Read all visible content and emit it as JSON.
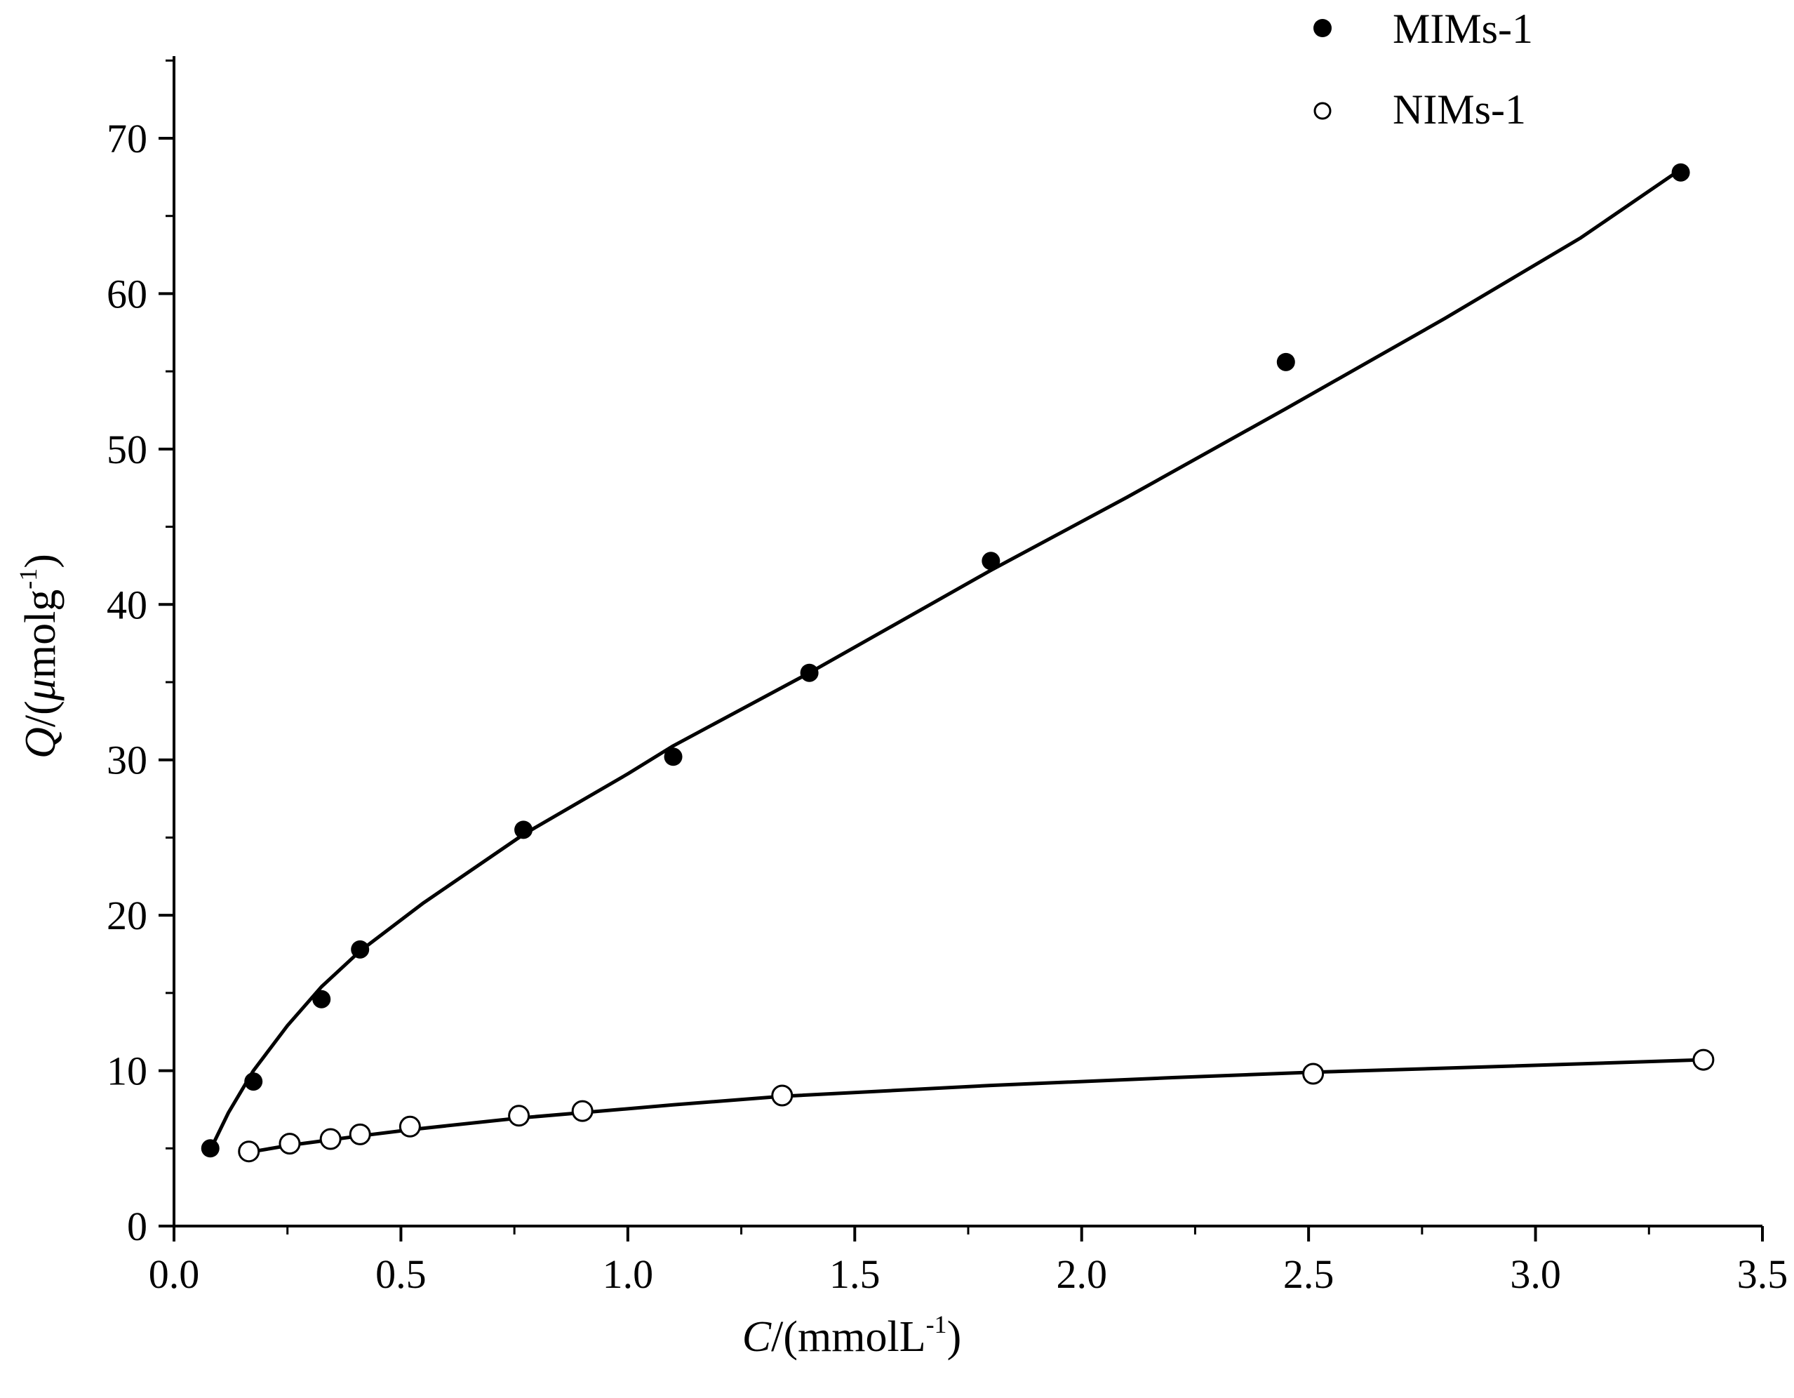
{
  "chart_data": {
    "type": "scatter",
    "title": "",
    "xlabel": {
      "var": "C",
      "unit": "/(mmolL",
      "sup": "-1",
      "close": ")"
    },
    "ylabel": {
      "var": "Q",
      "unit_a": "/(",
      "mu": "μ",
      "unit_b": "molg",
      "sup": "-1",
      "close": ")"
    },
    "xlim": [
      0.0,
      3.5
    ],
    "ylim": [
      0,
      75
    ],
    "xticks": [
      0.0,
      0.5,
      1.0,
      1.5,
      2.0,
      2.5,
      3.0,
      3.5
    ],
    "xtick_labels": [
      "0.0",
      "0.5",
      "1.0",
      "1.5",
      "2.0",
      "2.5",
      "3.0",
      "3.5"
    ],
    "yticks": [
      0,
      10,
      20,
      30,
      40,
      50,
      60,
      70
    ],
    "ytick_labels": [
      "0",
      "10",
      "20",
      "30",
      "40",
      "50",
      "60",
      "70"
    ],
    "grid": false,
    "legend_position": "top-right",
    "series": [
      {
        "name": "MIMs-1",
        "marker": "filled-circle",
        "x": [
          0.08,
          0.175,
          0.325,
          0.41,
          0.77,
          1.1,
          1.4,
          1.8,
          2.45,
          3.32
        ],
        "y": [
          5.0,
          9.3,
          14.6,
          17.8,
          25.5,
          30.2,
          35.6,
          42.8,
          55.6,
          67.8
        ],
        "fit": {
          "x": [
            0.08,
            0.12,
            0.175,
            0.25,
            0.325,
            0.41,
            0.55,
            0.77,
            1.0,
            1.1,
            1.4,
            1.8,
            2.1,
            2.45,
            2.8,
            3.1,
            3.32
          ],
          "y": [
            4.9,
            7.3,
            10.0,
            12.9,
            15.4,
            17.7,
            20.8,
            25.2,
            29.1,
            30.9,
            35.6,
            42.2,
            46.9,
            52.6,
            58.4,
            63.6,
            68.0
          ]
        }
      },
      {
        "name": "NIMs-1",
        "marker": "open-circle",
        "x": [
          0.165,
          0.255,
          0.345,
          0.41,
          0.52,
          0.76,
          0.9,
          1.34,
          2.51,
          3.37
        ],
        "y": [
          4.8,
          5.3,
          5.6,
          5.9,
          6.4,
          7.1,
          7.4,
          8.4,
          9.8,
          10.7
        ],
        "fit": {
          "x": [
            0.165,
            0.255,
            0.345,
            0.41,
            0.52,
            0.76,
            0.9,
            1.1,
            1.34,
            1.8,
            2.2,
            2.51,
            2.9,
            3.37
          ],
          "y": [
            4.75,
            5.2,
            5.55,
            5.8,
            6.2,
            6.95,
            7.3,
            7.8,
            8.35,
            9.05,
            9.55,
            9.9,
            10.25,
            10.7
          ]
        }
      }
    ]
  }
}
